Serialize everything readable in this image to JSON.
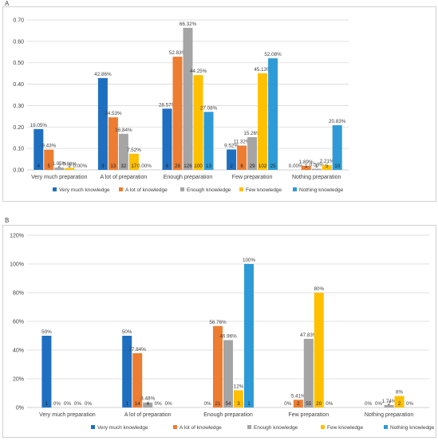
{
  "chart_data": [
    {
      "type": "bar",
      "panel": "A",
      "categories": [
        "Very much preparation",
        "A lot of preparation",
        "Enough preparation",
        "Few preparation",
        "Nothing preparation"
      ],
      "ylim": [
        0,
        0.7
      ],
      "yticks": [
        "0.00",
        "0.10",
        "0.20",
        "0.30",
        "0.40",
        "0.50",
        "0.60",
        "0.70"
      ],
      "grid": true,
      "legend_position": "bottom",
      "series": [
        {
          "name": "Very much knowledge",
          "color": "#1f6fc0",
          "values": [
            0.1905,
            0.4286,
            0.2857,
            0.0952,
            0.0
          ],
          "labels": [
            "19.05%",
            "42.86%",
            "28.57%",
            "9.52%",
            "0.00%"
          ],
          "counts": [
            "4",
            "9",
            "6",
            "2",
            ""
          ]
        },
        {
          "name": "A lot of knowledge",
          "color": "#ed7d31",
          "values": [
            0.0943,
            0.2453,
            0.5283,
            0.1132,
            0.0189
          ],
          "labels": [
            "9.43%",
            "24.53%",
            "52.83%",
            "11.32%",
            "1.89%"
          ],
          "counts": [
            "5",
            "13",
            "28",
            "6",
            "1"
          ]
        },
        {
          "name": "Enough knowledge",
          "color": "#a5a5a5",
          "values": [
            0.0105,
            0.1684,
            0.6632,
            0.1526,
            0.0053
          ],
          "labels": [
            "1.05%",
            "16.84%",
            "66.32%",
            "15.26%",
            "0.53%"
          ],
          "counts": [
            "2",
            "32",
            "126",
            "29",
            "1"
          ]
        },
        {
          "name": "Few knowledge",
          "color": "#ffc000",
          "values": [
            0.0088,
            0.0752,
            0.4425,
            0.4513,
            0.0221
          ],
          "labels": [
            "0.88%",
            "7.52%",
            "44.25%",
            "45.13%",
            "2.21%"
          ],
          "counts": [
            "2",
            "17",
            "100",
            "102",
            "5"
          ]
        },
        {
          "name": "Nothing knowledge",
          "color": "#2e9bd6",
          "values": [
            0.0,
            0.0,
            0.2708,
            0.5208,
            0.2083
          ],
          "labels": [
            "0.00%",
            "0.00%",
            "27.08%",
            "52.08%",
            "20.83%"
          ],
          "counts": [
            "",
            "",
            "13",
            "25",
            "10"
          ]
        }
      ]
    },
    {
      "type": "bar",
      "panel": "B",
      "categories": [
        "Very much preparation",
        "A lot of preparation",
        "Enough preparation",
        "Few preparation",
        "Nothing preparation"
      ],
      "ylim": [
        0,
        120
      ],
      "yticks": [
        "0%",
        "20%",
        "40%",
        "60%",
        "80%",
        "100%",
        "120%"
      ],
      "grid": true,
      "legend_position": "bottom",
      "series": [
        {
          "name": "Very much knowledge",
          "color": "#1f6fc0",
          "values": [
            50,
            50,
            0,
            0,
            0
          ],
          "labels": [
            "50%",
            "50%",
            "0%",
            "0%",
            "0%"
          ],
          "counts": [
            "1",
            "1",
            "",
            "",
            ""
          ]
        },
        {
          "name": "A lot of knowledge",
          "color": "#ed7d31",
          "values": [
            0,
            37.84,
            56.76,
            5.41,
            0
          ],
          "labels": [
            "0%",
            "37.84%",
            "56.76%",
            "5.41%",
            "0%"
          ],
          "counts": [
            "",
            "14",
            "21",
            "2",
            ""
          ]
        },
        {
          "name": "Enough knowledge",
          "color": "#a5a5a5",
          "values": [
            0,
            3.48,
            46.96,
            47.83,
            1.74
          ],
          "labels": [
            "0%",
            "3.48%",
            "46.96%",
            "47.83%",
            "1.74%"
          ],
          "counts": [
            "",
            "4",
            "54",
            "55",
            "2"
          ]
        },
        {
          "name": "Few knowledge",
          "color": "#ffc000",
          "values": [
            0,
            0,
            12,
            80,
            8
          ],
          "labels": [
            "0%",
            "0%",
            "12%",
            "80%",
            "8%"
          ],
          "counts": [
            "",
            "",
            "3",
            "20",
            "2"
          ]
        },
        {
          "name": "Nothing knowledge",
          "color": "#2e9bd6",
          "values": [
            0,
            0,
            100,
            0,
            0
          ],
          "labels": [
            "0%",
            "0%",
            "100%",
            "0%",
            "0%"
          ],
          "counts": [
            "",
            "",
            "1",
            "",
            ""
          ]
        }
      ]
    }
  ]
}
